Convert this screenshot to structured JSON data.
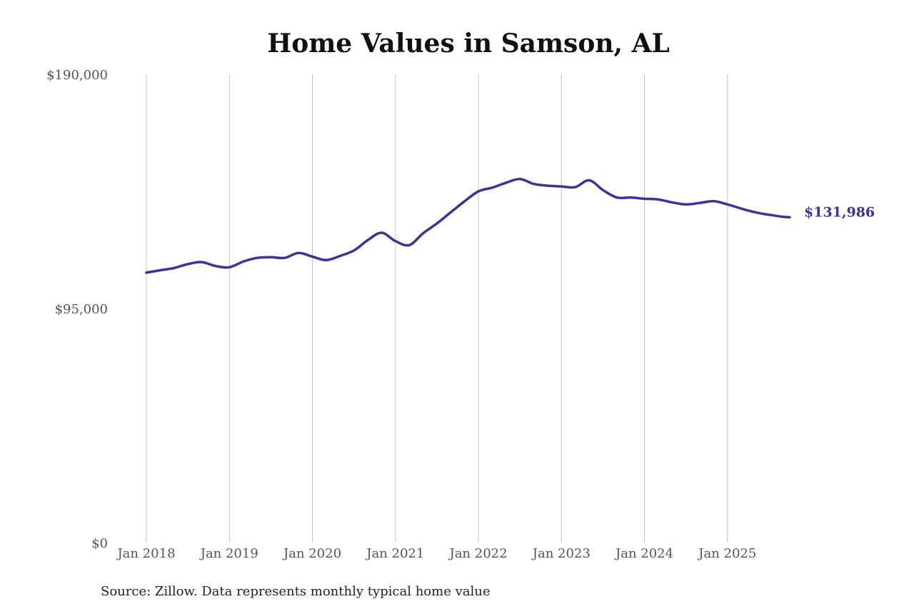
{
  "chart_data": {
    "type": "line",
    "title": "Home Values in Samson, AL",
    "source": "Source: Zillow. Data represents monthly typical home value",
    "xlabel": "",
    "ylabel": "",
    "ylim": [
      0,
      190000
    ],
    "y_ticks": [
      {
        "value": 0,
        "label": "$0"
      },
      {
        "value": 95000,
        "label": "$95,000"
      },
      {
        "value": 190000,
        "label": "$190,000"
      }
    ],
    "x_ticks": [
      {
        "date": "2018-01",
        "label": "Jan 2018"
      },
      {
        "date": "2019-01",
        "label": "Jan 2019"
      },
      {
        "date": "2020-01",
        "label": "Jan 2020"
      },
      {
        "date": "2021-01",
        "label": "Jan 2021"
      },
      {
        "date": "2022-01",
        "label": "Jan 2022"
      },
      {
        "date": "2023-01",
        "label": "Jan 2023"
      },
      {
        "date": "2024-01",
        "label": "Jan 2024"
      },
      {
        "date": "2025-01",
        "label": "Jan 2025"
      }
    ],
    "xlim": [
      "2018-01",
      "2025-10"
    ],
    "grid": {
      "vertical": true,
      "horizontal": false
    },
    "line_color": "#3a3399",
    "end_label": "$131,986",
    "series": [
      {
        "x": [
          "2018-01",
          "2018-03",
          "2018-05",
          "2018-07",
          "2018-09",
          "2018-11",
          "2019-01",
          "2019-03",
          "2019-05",
          "2019-07",
          "2019-09",
          "2019-11",
          "2020-01",
          "2020-03",
          "2020-05",
          "2020-07",
          "2020-09",
          "2020-11",
          "2021-01",
          "2021-03",
          "2021-05",
          "2021-07",
          "2021-09",
          "2021-11",
          "2022-01",
          "2022-03",
          "2022-05",
          "2022-07",
          "2022-09",
          "2022-11",
          "2023-01",
          "2023-03",
          "2023-05",
          "2023-07",
          "2023-09",
          "2023-11",
          "2024-01",
          "2024-03",
          "2024-05",
          "2024-07",
          "2024-09",
          "2024-11",
          "2025-01",
          "2025-03",
          "2025-05",
          "2025-07",
          "2025-09",
          "2025-10"
        ],
        "values": [
          109500,
          110500,
          111400,
          113000,
          113800,
          112200,
          111700,
          114000,
          115500,
          115800,
          115500,
          117500,
          116000,
          114600,
          116300,
          118500,
          122700,
          125700,
          122300,
          120700,
          125500,
          129500,
          134000,
          138500,
          142500,
          144000,
          146000,
          147500,
          145500,
          144800,
          144500,
          144200,
          147000,
          143000,
          140000,
          140000,
          139500,
          139200,
          138000,
          137200,
          137800,
          138500,
          137200,
          135500,
          134000,
          133000,
          132200,
          131986
        ]
      }
    ]
  }
}
